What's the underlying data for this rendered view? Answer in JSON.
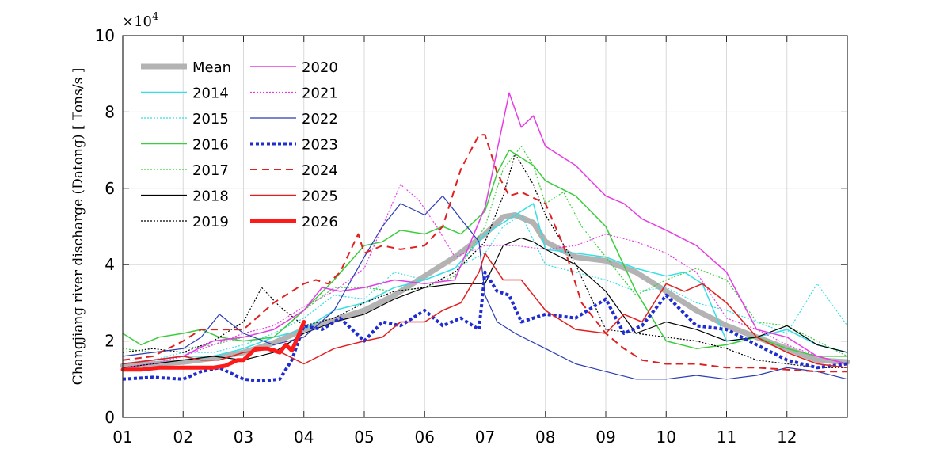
{
  "chart_data": {
    "type": "line",
    "title": "",
    "xlabel": "",
    "ylabel": "Changjiang river discharge (Datong) [ Tons/s ]",
    "y_multiplier_label": "×10",
    "y_multiplier_exp": "4",
    "xlim": [
      0,
      12
    ],
    "ylim": [
      0,
      10
    ],
    "grid": true,
    "legend_position": "top-left",
    "x_ticks": [
      {
        "value": 0,
        "label": "01"
      },
      {
        "value": 1,
        "label": "02"
      },
      {
        "value": 2,
        "label": "03"
      },
      {
        "value": 3,
        "label": "04"
      },
      {
        "value": 4,
        "label": "05"
      },
      {
        "value": 5,
        "label": "06"
      },
      {
        "value": 6,
        "label": "07"
      },
      {
        "value": 7,
        "label": "08"
      },
      {
        "value": 8,
        "label": "09"
      },
      {
        "value": 9,
        "label": "10"
      },
      {
        "value": 10,
        "label": "11"
      },
      {
        "value": 11,
        "label": "12"
      }
    ],
    "y_ticks": [
      {
        "value": 0,
        "label": "0"
      },
      {
        "value": 2,
        "label": "2"
      },
      {
        "value": 4,
        "label": "4"
      },
      {
        "value": 6,
        "label": "6"
      },
      {
        "value": 8,
        "label": "8"
      },
      {
        "value": 10,
        "label": "10"
      }
    ],
    "series": [
      {
        "name": "Mean",
        "color": "#b3b3b3",
        "width": 7,
        "dash": "",
        "x": [
          0,
          0.5,
          1,
          1.5,
          2,
          2.5,
          3,
          3.5,
          4,
          4.5,
          5,
          5.5,
          6,
          6.3,
          6.5,
          6.8,
          7,
          7.5,
          8,
          8.5,
          9,
          9.5,
          10,
          10.5,
          11,
          11.5,
          12
        ],
        "y": [
          1.35,
          1.4,
          1.45,
          1.55,
          1.7,
          1.95,
          2.3,
          2.55,
          2.8,
          3.2,
          3.7,
          4.2,
          4.8,
          5.25,
          5.3,
          5.1,
          4.6,
          4.2,
          4.1,
          3.8,
          3.3,
          2.8,
          2.4,
          2.1,
          1.8,
          1.5,
          1.45
        ]
      },
      {
        "name": "2014",
        "color": "#33e0e6",
        "width": 1.5,
        "dash": "",
        "x": [
          0,
          0.5,
          1,
          1.5,
          2,
          2.5,
          3,
          3.5,
          4,
          4.5,
          5,
          5.5,
          6,
          6.3,
          6.6,
          6.8,
          7,
          7.5,
          8,
          8.5,
          9,
          9.3,
          9.6,
          10,
          10.5,
          11,
          11.5,
          12
        ],
        "y": [
          1.4,
          1.5,
          1.6,
          1.6,
          1.8,
          2.1,
          2.3,
          2.8,
          3.0,
          3.4,
          3.6,
          3.9,
          4.8,
          5.1,
          5.4,
          5.6,
          4.4,
          4.3,
          4.2,
          3.9,
          3.7,
          3.8,
          3.5,
          2.0,
          2.1,
          2.3,
          1.9,
          1.7
        ]
      },
      {
        "name": "2015",
        "color": "#33e0e6",
        "width": 1.2,
        "dash": "2,2",
        "x": [
          0,
          0.5,
          1,
          1.5,
          2,
          2.5,
          3,
          3.5,
          4,
          4.5,
          5,
          5.5,
          6,
          6.3,
          6.6,
          7,
          7.5,
          8,
          8.5,
          9,
          9.5,
          10,
          10.5,
          11,
          11.5,
          12
        ],
        "y": [
          1.5,
          1.5,
          1.7,
          1.7,
          1.9,
          2.2,
          2.6,
          3.2,
          3.1,
          3.8,
          3.6,
          3.9,
          4.3,
          5.0,
          5.3,
          4.0,
          3.8,
          3.6,
          3.3,
          3.4,
          3.0,
          2.8,
          2.5,
          2.2,
          3.5,
          2.4
        ]
      },
      {
        "name": "2016",
        "color": "#3ccd3c",
        "width": 1.5,
        "dash": "",
        "x": [
          0,
          0.3,
          0.6,
          1,
          1.3,
          1.6,
          2,
          2.5,
          3,
          3.5,
          4,
          4.3,
          4.6,
          5,
          5.3,
          5.6,
          6,
          6.2,
          6.4,
          6.6,
          6.8,
          7,
          7.5,
          8,
          8.5,
          9,
          9.5,
          10,
          10.5,
          11,
          11.5,
          12
        ],
        "y": [
          2.2,
          1.9,
          2.1,
          2.2,
          2.3,
          2.1,
          2.0,
          2.1,
          2.8,
          3.6,
          4.5,
          4.6,
          4.9,
          4.8,
          5.0,
          4.8,
          5.4,
          6.4,
          7.0,
          6.8,
          6.6,
          6.2,
          5.8,
          5.0,
          3.3,
          2.0,
          1.8,
          1.9,
          2.1,
          1.8,
          1.6,
          1.6
        ]
      },
      {
        "name": "2017",
        "color": "#3ccd3c",
        "width": 1.2,
        "dash": "2,2",
        "x": [
          0,
          0.5,
          1,
          1.5,
          2,
          2.5,
          3,
          3.5,
          4,
          4.5,
          5,
          5.5,
          6,
          6.3,
          6.6,
          6.8,
          7,
          7.3,
          7.6,
          8,
          8.5,
          9,
          9.5,
          10,
          10.5,
          11,
          11.5,
          12
        ],
        "y": [
          1.8,
          1.7,
          1.8,
          1.9,
          2.1,
          2.3,
          2.8,
          3.4,
          3.4,
          3.3,
          3.4,
          3.7,
          5.0,
          6.5,
          7.1,
          6.6,
          5.6,
          5.9,
          5.0,
          4.2,
          3.2,
          3.6,
          3.9,
          3.6,
          2.5,
          2.4,
          2.0,
          1.6
        ]
      },
      {
        "name": "2018",
        "color": "#000000",
        "width": 1.2,
        "dash": "",
        "x": [
          0,
          0.5,
          1,
          1.5,
          2,
          2.5,
          3,
          3.5,
          4,
          4.5,
          5,
          5.5,
          6,
          6.3,
          6.6,
          6.8,
          7,
          7.5,
          8,
          8.5,
          9,
          9.5,
          10,
          10.5,
          11,
          11.5,
          12
        ],
        "y": [
          1.3,
          1.4,
          1.5,
          1.6,
          1.5,
          1.7,
          2.2,
          2.5,
          2.7,
          3.1,
          3.4,
          3.5,
          3.5,
          4.5,
          4.7,
          4.6,
          4.4,
          4.0,
          3.3,
          2.2,
          2.5,
          2.3,
          2.0,
          2.1,
          2.4,
          1.9,
          1.7
        ]
      },
      {
        "name": "2019",
        "color": "#000000",
        "width": 1.2,
        "dash": "2,2",
        "x": [
          0,
          0.5,
          1,
          1.5,
          2,
          2.3,
          2.6,
          3,
          3.5,
          4,
          4.5,
          5,
          5.5,
          6,
          6.3,
          6.5,
          6.8,
          7,
          7.5,
          8,
          8.5,
          9,
          9.5,
          10,
          10.5,
          11,
          11.5,
          12
        ],
        "y": [
          1.7,
          1.8,
          1.7,
          2.0,
          2.5,
          3.4,
          2.9,
          2.4,
          2.6,
          3.0,
          3.3,
          3.4,
          3.8,
          4.6,
          5.8,
          6.9,
          6.1,
          5.3,
          4.0,
          2.3,
          2.2,
          2.1,
          2.0,
          1.8,
          1.5,
          1.4,
          1.3,
          1.3
        ]
      },
      {
        "name": "2020",
        "color": "#e63ce6",
        "width": 1.5,
        "dash": "",
        "x": [
          0,
          0.5,
          1,
          1.5,
          2,
          2.5,
          3,
          3.3,
          3.6,
          4,
          4.5,
          5,
          5.5,
          6,
          6.2,
          6.4,
          6.6,
          6.8,
          7,
          7.5,
          8,
          8.3,
          8.6,
          9,
          9.5,
          10,
          10.5,
          11,
          11.5,
          12
        ],
        "y": [
          1.4,
          1.5,
          1.6,
          2.0,
          2.1,
          2.3,
          2.8,
          3.4,
          3.3,
          3.4,
          3.6,
          3.5,
          3.6,
          5.5,
          7.0,
          8.5,
          7.6,
          7.9,
          7.1,
          6.6,
          5.8,
          5.6,
          5.2,
          4.9,
          4.5,
          3.8,
          2.3,
          2.1,
          1.6,
          1.4
        ]
      },
      {
        "name": "2021",
        "color": "#e63ce6",
        "width": 1.2,
        "dash": "2,2",
        "x": [
          0,
          0.5,
          1,
          1.5,
          2,
          2.5,
          3,
          3.5,
          4,
          4.3,
          4.6,
          4.9,
          5.2,
          5.5,
          6,
          6.5,
          7,
          7.5,
          8,
          8.5,
          9,
          9.5,
          10,
          10.5,
          11,
          11.5,
          12
        ],
        "y": [
          1.3,
          1.4,
          1.6,
          1.9,
          2.2,
          2.4,
          2.9,
          3.3,
          3.9,
          5.0,
          6.1,
          5.7,
          5.0,
          4.2,
          4.5,
          4.5,
          4.4,
          4.5,
          4.8,
          4.6,
          4.3,
          3.8,
          2.6,
          2.3,
          1.9,
          1.6,
          1.4
        ]
      },
      {
        "name": "2022",
        "color": "#2a3cb4",
        "width": 1.2,
        "dash": "",
        "x": [
          0,
          0.5,
          1,
          1.3,
          1.6,
          2,
          2.5,
          3,
          3.5,
          4,
          4.3,
          4.6,
          5,
          5.3,
          5.6,
          5.9,
          6,
          6.2,
          6.5,
          7,
          7.5,
          8,
          8.5,
          9,
          9.5,
          10,
          10.5,
          11,
          11.5,
          12
        ],
        "y": [
          1.6,
          1.7,
          1.8,
          2.1,
          2.7,
          2.2,
          1.9,
          2.1,
          2.8,
          4.2,
          5.0,
          5.6,
          5.3,
          5.8,
          5.2,
          4.6,
          3.2,
          2.5,
          2.2,
          1.8,
          1.4,
          1.2,
          1.0,
          1.0,
          1.1,
          1.0,
          1.1,
          1.3,
          1.2,
          1.0
        ]
      },
      {
        "name": "2023",
        "color": "#1e2cd2",
        "width": 4,
        "dash": "4,3",
        "x": [
          0,
          0.5,
          1,
          1.3,
          1.6,
          2,
          2.3,
          2.6,
          2.8,
          3,
          3.3,
          3.6,
          4,
          4.3,
          4.6,
          5,
          5.3,
          5.6,
          5.9,
          6,
          6.2,
          6.4,
          6.6,
          7,
          7.5,
          8,
          8.3,
          8.6,
          9,
          9.5,
          10,
          10.5,
          11,
          11.5,
          12
        ],
        "y": [
          1.0,
          1.05,
          1.0,
          1.2,
          1.3,
          1.0,
          0.95,
          1.0,
          1.5,
          2.4,
          2.3,
          2.6,
          2.0,
          2.5,
          2.4,
          2.8,
          2.4,
          2.6,
          2.3,
          3.8,
          3.3,
          3.2,
          2.5,
          2.7,
          2.6,
          3.1,
          2.2,
          2.4,
          3.2,
          2.4,
          2.3,
          1.9,
          1.5,
          1.3,
          1.4
        ]
      },
      {
        "name": "2024",
        "color": "#e02020",
        "width": 2,
        "dash": "9,6",
        "x": [
          0,
          0.5,
          1,
          1.3,
          1.6,
          2,
          2.5,
          3,
          3.2,
          3.4,
          3.6,
          3.9,
          4,
          4.3,
          4.6,
          5,
          5.3,
          5.6,
          5.9,
          6,
          6.2,
          6.4,
          6.6,
          7,
          7.3,
          7.6,
          8,
          8.3,
          8.6,
          9,
          9.5,
          10,
          10.5,
          11,
          11.5,
          12
        ],
        "y": [
          1.5,
          1.6,
          2.0,
          2.3,
          2.3,
          2.3,
          3.0,
          3.5,
          3.6,
          3.5,
          3.8,
          4.8,
          4.3,
          4.5,
          4.4,
          4.5,
          5.0,
          6.5,
          7.4,
          7.4,
          6.4,
          5.8,
          5.9,
          5.6,
          4.5,
          3.0,
          2.2,
          1.8,
          1.5,
          1.4,
          1.4,
          1.3,
          1.3,
          1.25,
          1.2,
          1.2
        ]
      },
      {
        "name": "2025",
        "color": "#e02020",
        "width": 1.5,
        "dash": "",
        "x": [
          0,
          0.5,
          1,
          1.3,
          1.6,
          2,
          2.5,
          3,
          3.5,
          4,
          4.3,
          4.6,
          5,
          5.3,
          5.6,
          5.9,
          6,
          6.3,
          6.6,
          7,
          7.5,
          8,
          8.3,
          8.6,
          9,
          9.3,
          9.6,
          10,
          10.5,
          11,
          11.5,
          12
        ],
        "y": [
          1.4,
          1.5,
          1.6,
          1.5,
          1.5,
          1.7,
          1.8,
          1.4,
          1.8,
          2.0,
          2.1,
          2.5,
          2.5,
          2.8,
          3.0,
          3.8,
          4.3,
          3.6,
          3.6,
          2.8,
          2.3,
          2.2,
          2.7,
          2.5,
          3.5,
          3.3,
          3.5,
          3.0,
          2.1,
          1.7,
          1.4,
          1.3
        ]
      },
      {
        "name": "2026",
        "color": "#ff1a1a",
        "width": 5,
        "dash": "",
        "x": [
          0,
          0.3,
          0.6,
          0.9,
          1.2,
          1.5,
          1.7,
          1.9,
          2.0,
          2.2,
          2.4,
          2.6,
          2.7,
          2.8,
          2.9,
          3.0
        ],
        "y": [
          1.25,
          1.25,
          1.3,
          1.3,
          1.3,
          1.3,
          1.35,
          1.5,
          1.5,
          1.8,
          1.8,
          1.7,
          1.9,
          1.75,
          2.1,
          2.5
        ]
      }
    ]
  }
}
